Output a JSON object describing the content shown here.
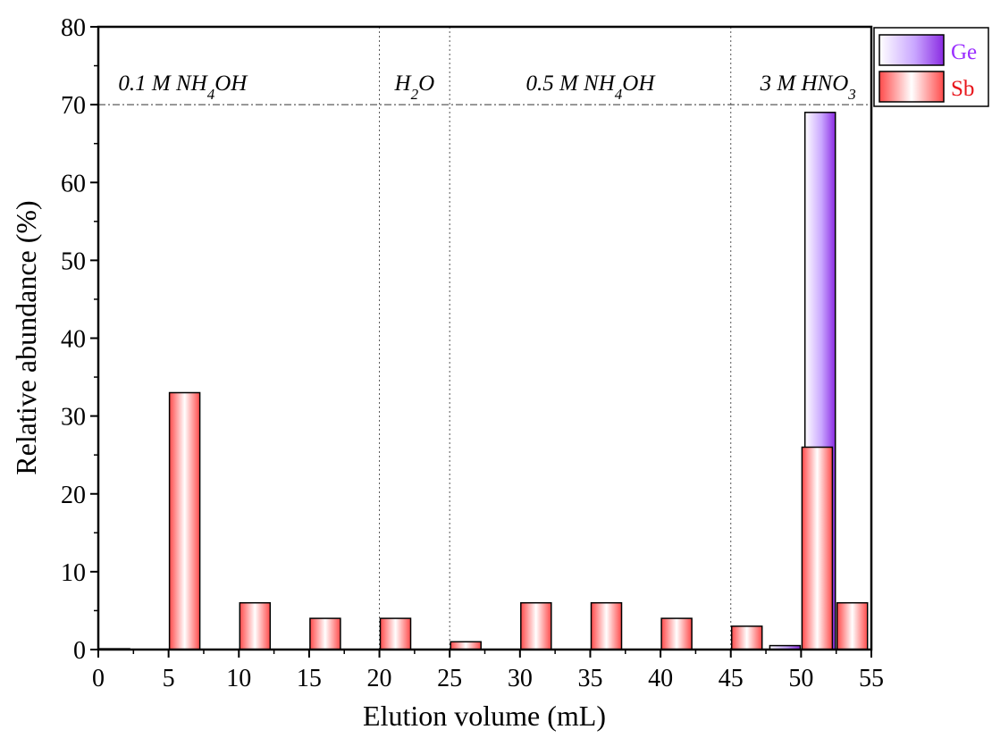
{
  "chart_data": {
    "type": "bar",
    "xlabel": "Elution volume (mL)",
    "ylabel": "Relative abundance (%)",
    "xlim": [
      0,
      55
    ],
    "ylim": [
      0,
      80
    ],
    "xticks": [
      0,
      5,
      10,
      15,
      20,
      25,
      30,
      35,
      40,
      45,
      50,
      55
    ],
    "yticks": [
      0,
      10,
      20,
      30,
      40,
      50,
      60,
      70,
      80
    ],
    "grid": false,
    "legend_position": "outside-top-right",
    "series": [
      {
        "name": "Ge",
        "color": "#9b30ff",
        "x": [
          0,
          5,
          10,
          15,
          20,
          25,
          30,
          35,
          40,
          45,
          50,
          52.5
        ],
        "values": [
          0,
          0,
          0,
          0,
          0,
          0,
          0,
          0,
          0,
          0,
          0.5,
          69
        ]
      },
      {
        "name": "Sb",
        "color": "#e8151b",
        "x": [
          0,
          5,
          10,
          15,
          20,
          25,
          30,
          35,
          40,
          45,
          50,
          52.5
        ],
        "values": [
          0.1,
          33,
          6,
          4,
          4,
          1,
          6,
          6,
          4,
          3,
          26,
          6
        ]
      }
    ],
    "reference_line": {
      "y": 70
    },
    "region_dividers": [
      20,
      25,
      45
    ],
    "regions": [
      {
        "x": 6,
        "parts": [
          {
            "t": "0.1 M NH"
          },
          {
            "t": "4",
            "sub": true
          },
          {
            "t": "OH"
          }
        ]
      },
      {
        "x": 22.5,
        "parts": [
          {
            "t": "H"
          },
          {
            "t": "2",
            "sub": true
          },
          {
            "t": "O"
          }
        ]
      },
      {
        "x": 35,
        "parts": [
          {
            "t": "0.5 M NH"
          },
          {
            "t": "4",
            "sub": true
          },
          {
            "t": "OH"
          }
        ]
      },
      {
        "x": 50.5,
        "parts": [
          {
            "t": "3 M HNO"
          },
          {
            "t": "3",
            "sub": true
          }
        ]
      }
    ]
  }
}
